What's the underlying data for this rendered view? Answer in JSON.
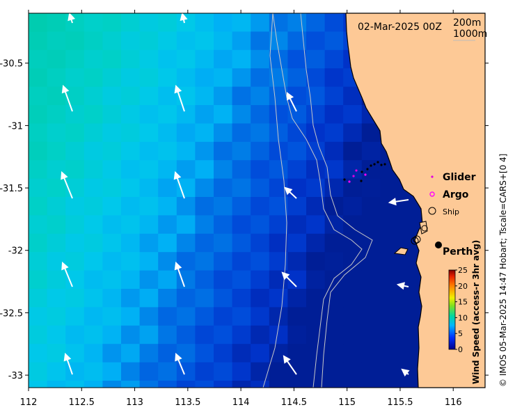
{
  "title": "02-Mar-2025 00Z",
  "contours": [
    "200m",
    "1000m"
  ],
  "colorbar": {
    "label": "Wind Speed (access-r 3hr avg)",
    "ticks": [
      "25",
      "20",
      "15",
      "10",
      "5",
      "0"
    ],
    "range": [
      0,
      25
    ]
  },
  "x_axis": {
    "ticks": [
      "112",
      "112.5",
      "113",
      "113.5",
      "114",
      "114.5",
      "115",
      "115.5",
      "116"
    ],
    "range": [
      112,
      116.3
    ]
  },
  "y_axis": {
    "ticks": [
      "-30.5",
      "-31",
      "-31.5",
      "-32",
      "-32.5",
      "-33"
    ],
    "range": [
      -33.1,
      -30.1
    ]
  },
  "legend": {
    "glider": "Glider",
    "argo": "Argo",
    "ship": "Ship"
  },
  "place": "Perth",
  "credit": "© IMOS 05-Mar-2025 14:47 Hobart; Tscale=CARS+[0 4]",
  "colors": {
    "land": "#fdc996",
    "glider": "#e000e0",
    "argo": "#ff00ff"
  }
}
